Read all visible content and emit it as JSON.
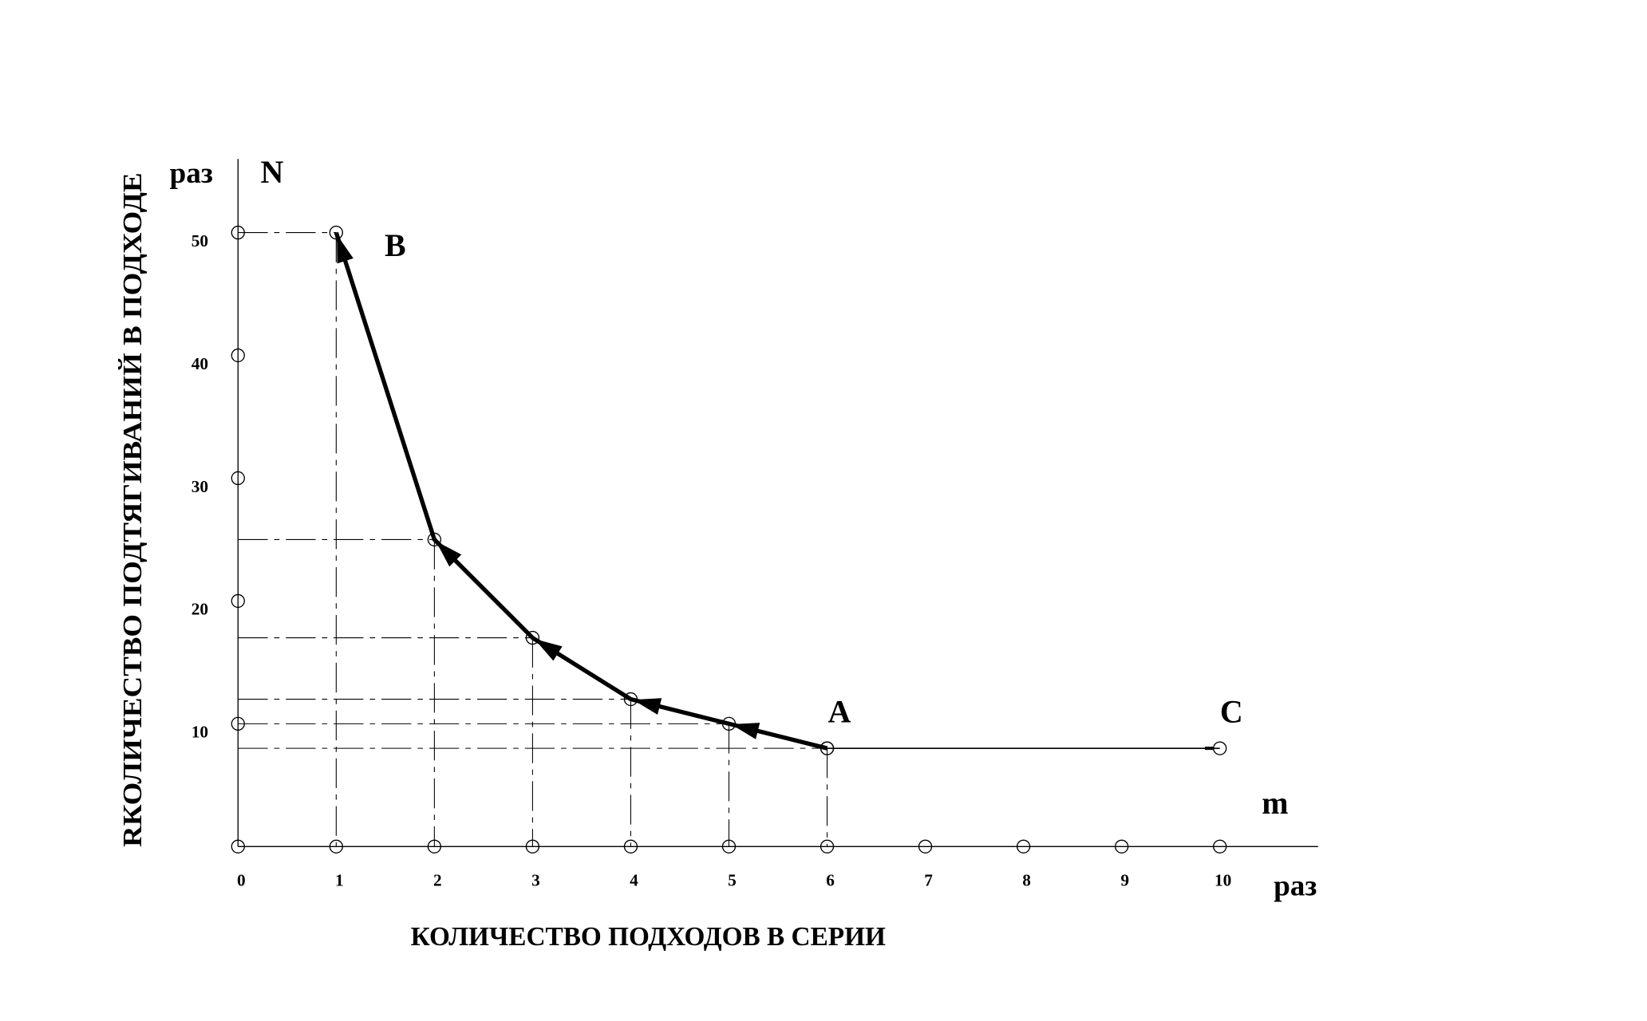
{
  "chart_data": {
    "type": "line",
    "x_label": "КОЛИЧЕСТВО ПОДХОДОВ В СЕРИИ",
    "y_label": "RКОЛИЧЕСТВО ПОДТЯГИВАНИЙ В ПОДХОДЕ",
    "x_symbol": "m",
    "y_symbol": "N",
    "x_unit": "раз",
    "y_unit": "раз",
    "annotations": [
      "B",
      "A",
      "C"
    ],
    "series": [
      {
        "color": "#000000",
        "x": [
          1,
          2,
          3,
          4,
          5,
          6
        ],
        "values": [
          50,
          25,
          17,
          12,
          10,
          8
        ]
      },
      {
        "color": "#000000",
        "x": [
          6,
          10
        ],
        "values": [
          8,
          8
        ]
      }
    ],
    "xlim": [
      0,
      11
    ],
    "ylim": [
      0,
      56
    ],
    "xticks": [
      0,
      1,
      2,
      3,
      4,
      5,
      6,
      7,
      8,
      9,
      10
    ],
    "yticks": [
      10,
      20,
      30,
      40,
      50
    ]
  }
}
